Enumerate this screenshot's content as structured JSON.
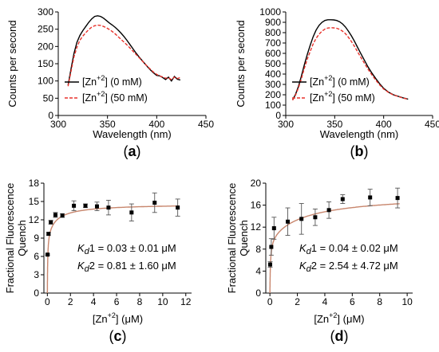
{
  "chart_data": [
    {
      "panel_label": "a",
      "type": "line",
      "xlabel": "Wavelength (nm)",
      "ylabel": "Counts per second",
      "xlim": [
        300,
        450
      ],
      "ylim": [
        0,
        300
      ],
      "x_ticks": [
        300,
        350,
        400,
        450
      ],
      "y_ticks": [
        0,
        50,
        100,
        150,
        200,
        250,
        300
      ],
      "legend_position": "lower-left",
      "grid": false,
      "series": [
        {
          "name": "[Zn+2] (0 mM)",
          "legend_main": "[Zn",
          "legend_sup": "+2",
          "legend_rest": "] (0 mM)",
          "color": "#000000",
          "dash": "solid",
          "x": [
            310,
            313,
            316,
            319,
            322,
            325,
            328,
            331,
            334,
            337,
            340,
            343,
            346,
            349,
            352,
            355,
            358,
            361,
            364,
            367,
            370,
            373,
            376,
            379,
            382,
            385,
            388,
            391,
            394,
            397,
            400,
            403,
            406,
            409,
            412,
            415,
            418,
            421,
            424
          ],
          "y": [
            88,
            135,
            180,
            212,
            232,
            246,
            258,
            270,
            280,
            287,
            289,
            287,
            282,
            275,
            268,
            262,
            255,
            247,
            238,
            228,
            217,
            205,
            193,
            181,
            170,
            160,
            150,
            140,
            131,
            123,
            116,
            115,
            110,
            104,
            111,
            100,
            113,
            105,
            103
          ]
        },
        {
          "name": "[Zn+2] (50 mM)",
          "legend_main": "[Zn",
          "legend_sup": "+2",
          "legend_rest": "] (50 mM)",
          "color": "#e8322b",
          "dash": "dashed",
          "x": [
            310,
            313,
            316,
            319,
            322,
            325,
            328,
            331,
            334,
            337,
            340,
            343,
            346,
            349,
            352,
            355,
            358,
            361,
            364,
            367,
            370,
            373,
            376,
            379,
            382,
            385,
            388,
            391,
            394,
            397,
            400,
            403,
            406,
            409,
            412,
            415,
            418,
            421,
            424
          ],
          "y": [
            85,
            128,
            170,
            198,
            218,
            230,
            240,
            249,
            256,
            260,
            262,
            261,
            258,
            254,
            249,
            243,
            236,
            228,
            220,
            212,
            204,
            195,
            186,
            177,
            168,
            159,
            150,
            141,
            133,
            125,
            119,
            114,
            112,
            108,
            109,
            104,
            111,
            107,
            110
          ]
        }
      ]
    },
    {
      "panel_label": "b",
      "type": "line",
      "xlabel": "Wavelength (nm)",
      "ylabel": "Counts per second",
      "xlim": [
        300,
        450
      ],
      "ylim": [
        0,
        1000
      ],
      "x_ticks": [
        300,
        350,
        400,
        450
      ],
      "y_ticks": [
        0,
        100,
        200,
        300,
        400,
        500,
        600,
        700,
        800,
        900,
        1000
      ],
      "legend_position": "lower-left",
      "grid": false,
      "series": [
        {
          "name": "[Zn+2] (0 mM)",
          "legend_main": "[Zn",
          "legend_sup": "+2",
          "legend_rest": "] (0 mM)",
          "color": "#000000",
          "dash": "solid",
          "x": [
            307,
            310,
            313,
            316,
            319,
            322,
            325,
            328,
            331,
            334,
            337,
            340,
            343,
            346,
            349,
            352,
            355,
            358,
            361,
            364,
            367,
            370,
            373,
            376,
            380,
            384,
            388,
            392,
            396,
            400,
            405,
            410,
            415,
            420,
            425
          ],
          "y": [
            150,
            205,
            280,
            380,
            490,
            590,
            680,
            760,
            825,
            870,
            900,
            918,
            925,
            925,
            923,
            918,
            905,
            885,
            855,
            815,
            770,
            720,
            665,
            610,
            540,
            470,
            410,
            355,
            305,
            262,
            225,
            200,
            185,
            170,
            158
          ]
        },
        {
          "name": "[Zn+2] (50 mM)",
          "legend_main": "[Zn",
          "legend_sup": "+2",
          "legend_rest": "] (50 mM)",
          "color": "#e8322b",
          "dash": "dashed",
          "x": [
            307,
            310,
            313,
            316,
            319,
            322,
            325,
            328,
            331,
            334,
            337,
            340,
            343,
            346,
            349,
            352,
            355,
            358,
            361,
            364,
            367,
            370,
            373,
            376,
            380,
            384,
            388,
            392,
            396,
            400,
            405,
            410,
            415,
            420,
            425
          ],
          "y": [
            148,
            198,
            265,
            355,
            455,
            545,
            620,
            690,
            745,
            785,
            815,
            835,
            845,
            848,
            846,
            842,
            832,
            815,
            790,
            755,
            715,
            670,
            622,
            572,
            510,
            448,
            392,
            340,
            294,
            255,
            222,
            198,
            183,
            168,
            158
          ]
        }
      ]
    },
    {
      "panel_label": "c",
      "type": "scatter",
      "xlabel_main": "[Zn",
      "xlabel_sup": "+2",
      "xlabel_rest": "] (μM)",
      "ylabel_line1": "Fractional Fluorescence",
      "ylabel_line2": "Quench",
      "xlim": [
        -0.3,
        12.5
      ],
      "ylim": [
        0,
        18
      ],
      "x_ticks": [
        0,
        2,
        4,
        6,
        8,
        10,
        12
      ],
      "y_ticks": [
        0,
        3,
        6,
        9,
        12,
        15,
        18
      ],
      "grid": false,
      "points": {
        "x": [
          0.02,
          0.1,
          0.3,
          0.7,
          1.3,
          2.3,
          3.3,
          4.3,
          5.3,
          7.3,
          9.3,
          11.3
        ],
        "y": [
          6.3,
          9.7,
          11.6,
          12.8,
          12.7,
          14.3,
          14.3,
          14.2,
          14.0,
          13.2,
          14.8,
          14.0
        ],
        "err": [
          0.1,
          0.2,
          0.3,
          0.4,
          0.3,
          0.8,
          0.3,
          0.7,
          1.2,
          1.4,
          1.6,
          1.4
        ]
      },
      "fit_color": "#c8866d",
      "fit": {
        "B1": 10.0,
        "K1": 0.03,
        "B2": 4.6,
        "K2": 0.81
      },
      "annotation_line1": {
        "k": "K",
        "sub": "d",
        "rest": "1 = 0.03 ± 0.01 μM"
      },
      "annotation_line2": {
        "k": "K",
        "sub": "d",
        "rest": "2 = 0.81 ± 1.60 μM"
      }
    },
    {
      "panel_label": "d",
      "type": "scatter",
      "xlabel_main": "[Zn",
      "xlabel_sup": "+2",
      "xlabel_rest": "] (μM)",
      "ylabel_line1": "Fractional Fluorescence",
      "ylabel_line2": "Quench",
      "xlim": [
        -0.3,
        10.4
      ],
      "ylim": [
        0,
        20
      ],
      "x_ticks": [
        0,
        2,
        4,
        6,
        8,
        10
      ],
      "y_ticks": [
        0,
        4,
        8,
        12,
        16,
        20
      ],
      "grid": false,
      "points": {
        "x": [
          0.02,
          0.1,
          0.3,
          1.3,
          2.3,
          3.3,
          4.3,
          5.3,
          7.3,
          9.3
        ],
        "y": [
          5.2,
          8.4,
          11.8,
          13.0,
          13.5,
          13.8,
          15.1,
          17.1,
          17.4,
          17.3
        ],
        "err": [
          0.5,
          1.5,
          2.0,
          2.5,
          2.8,
          1.5,
          1.5,
          0.8,
          1.5,
          1.8
        ]
      },
      "fit_color": "#c8866d",
      "fit": {
        "B1": 10.0,
        "K1": 0.04,
        "B2": 8.0,
        "K2": 2.54
      },
      "annotation_line1": {
        "k": "K",
        "sub": "d",
        "rest": "1 = 0.04 ± 0.02 μM"
      },
      "annotation_line2": {
        "k": "K",
        "sub": "d",
        "rest": "2 = 2.54 ± 4.72 μM"
      }
    }
  ]
}
